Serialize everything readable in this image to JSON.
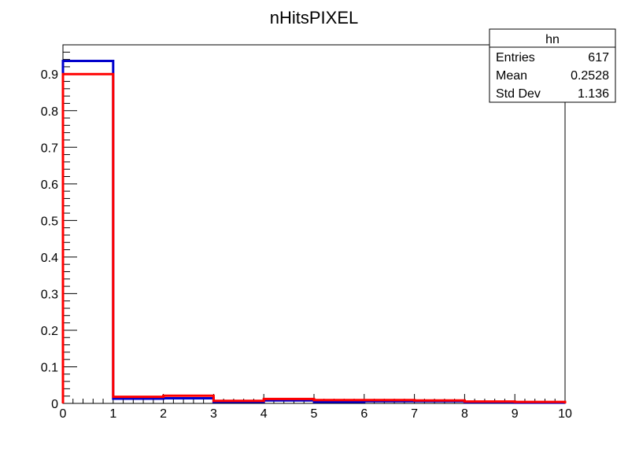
{
  "chart_data": {
    "type": "histogram",
    "title": "nHitsPIXEL",
    "xlabel": "",
    "ylabel": "",
    "xlim": [
      0,
      10
    ],
    "ylim": [
      0,
      0.98
    ],
    "grid": false,
    "bin_edges": [
      0,
      1,
      2,
      3,
      4,
      5,
      6,
      7,
      8,
      9,
      10
    ],
    "x_ticks": [
      "0",
      "1",
      "2",
      "3",
      "4",
      "5",
      "6",
      "7",
      "8",
      "9",
      "10"
    ],
    "y_ticks": [
      "0",
      "0.1",
      "0.2",
      "0.3",
      "0.4",
      "0.5",
      "0.6",
      "0.7",
      "0.8",
      "0.9"
    ],
    "series": [
      {
        "color": "#0000cc",
        "values": [
          0.936,
          0.013,
          0.014,
          0.004,
          0.008,
          0.004,
          0.006,
          0.006,
          0.003,
          0.002
        ]
      },
      {
        "color": "#ff0000",
        "values": [
          0.9,
          0.018,
          0.021,
          0.007,
          0.012,
          0.009,
          0.009,
          0.008,
          0.005,
          0.004
        ]
      }
    ],
    "stats_box": {
      "name": "hn",
      "placement": "top-right",
      "rows": [
        {
          "label": "Entries",
          "value": "617"
        },
        {
          "label": "Mean",
          "value": "0.2528"
        },
        {
          "label": "Std Dev",
          "value": "1.136"
        }
      ]
    }
  }
}
